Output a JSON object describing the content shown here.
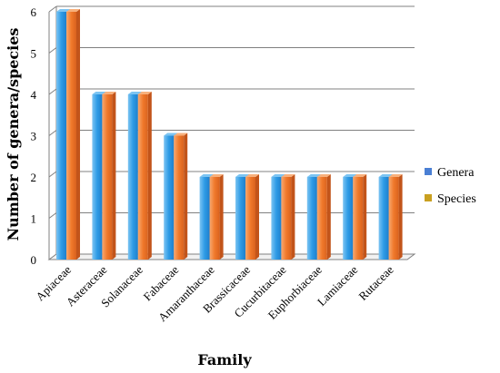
{
  "chart_data": {
    "type": "bar",
    "categories": [
      "Apiaceae",
      "Asteraceae",
      "Solanaceae",
      "Fabaceae",
      "Amaranthaceae",
      "Brassicaceae",
      "Cucurbitaceae",
      "Euphorbiaceae",
      "Lamiaceae",
      "Rutaceae"
    ],
    "series": [
      {
        "name": "Genera",
        "values": [
          6,
          4,
          4,
          3,
          2,
          2,
          2,
          2,
          2,
          2
        ]
      },
      {
        "name": "Species",
        "values": [
          6,
          4,
          4,
          3,
          2,
          2,
          2,
          2,
          2,
          2
        ]
      }
    ],
    "xlabel": "Family",
    "ylabel": "Number of genera/species",
    "ylim": [
      0,
      6
    ],
    "yticks": [
      0,
      1,
      2,
      3,
      4,
      5,
      6
    ],
    "grid": true,
    "legend_position": "right",
    "colors": {
      "genera_front": "#2e9be6",
      "genera_side": "#1f6fb3",
      "genera_top": "#7cc4f2",
      "species_front": "#f0792b",
      "species_side": "#c2541a",
      "species_top": "#f7b07c",
      "legend_genera": "#4a7fd4",
      "legend_species": "#c9a020",
      "grid": "#808080"
    }
  }
}
